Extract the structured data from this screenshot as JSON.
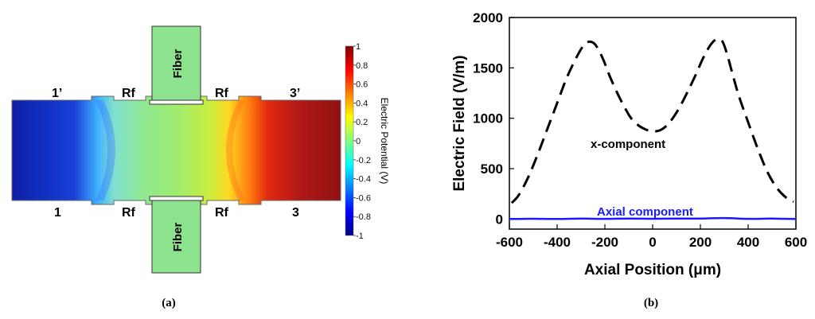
{
  "panel_a": {
    "caption": "(a)",
    "labels": {
      "port_1p": "1’",
      "port_3p": "3’",
      "port_1": "1",
      "port_3": "3",
      "rf": "Rf",
      "fiber": "Fiber"
    },
    "colorbar": {
      "label": "Electric Potential (V)",
      "ticks": [
        "1",
        "0.8",
        "0.6",
        "0.4",
        "0.2",
        "0",
        "-0.2",
        "-0.4",
        "-0.6",
        "-0.8",
        "-1"
      ],
      "range": [
        -1,
        1
      ],
      "colormap": "jet"
    },
    "colors": {
      "fiber_fill": "#8de38d",
      "fiber_stroke": "#333333"
    }
  },
  "panel_b": {
    "caption": "(b)",
    "colors": {
      "x_component": "#000000",
      "axial_component": "#1a1aff"
    }
  },
  "chart_data": {
    "type": "line",
    "xlabel": "Axial Position (μm)",
    "ylabel": "Electric Field (V/m)",
    "xlim": [
      -600,
      600
    ],
    "ylim": [
      -100,
      2000
    ],
    "xticks": [
      -600,
      -400,
      -200,
      0,
      200,
      400,
      600
    ],
    "yticks": [
      0,
      500,
      1000,
      1500,
      2000
    ],
    "grid": false,
    "series": [
      {
        "name": "x-component",
        "style": "dashed",
        "color": "#000000",
        "x": [
          -590,
          -560,
          -520,
          -480,
          -440,
          -400,
          -360,
          -320,
          -290,
          -265,
          -240,
          -210,
          -180,
          -150,
          -120,
          -90,
          -60,
          -30,
          0,
          30,
          60,
          90,
          120,
          150,
          180,
          210,
          240,
          265,
          290,
          310,
          330,
          360,
          400,
          440,
          480,
          520,
          560,
          590
        ],
        "y": [
          160,
          240,
          420,
          650,
          900,
          1150,
          1400,
          1600,
          1720,
          1760,
          1730,
          1600,
          1420,
          1260,
          1120,
          1000,
          930,
          890,
          870,
          880,
          930,
          1020,
          1140,
          1280,
          1430,
          1590,
          1720,
          1780,
          1770,
          1650,
          1480,
          1230,
          960,
          700,
          470,
          310,
          210,
          170
        ]
      },
      {
        "name": "Axial component",
        "style": "solid",
        "color": "#1a1aff",
        "x": [
          -600,
          -500,
          -400,
          -300,
          -200,
          -100,
          0,
          100,
          200,
          300,
          400,
          500,
          600
        ],
        "y": [
          0,
          3,
          0,
          4,
          2,
          5,
          3,
          4,
          5,
          10,
          2,
          4,
          0
        ]
      }
    ]
  }
}
